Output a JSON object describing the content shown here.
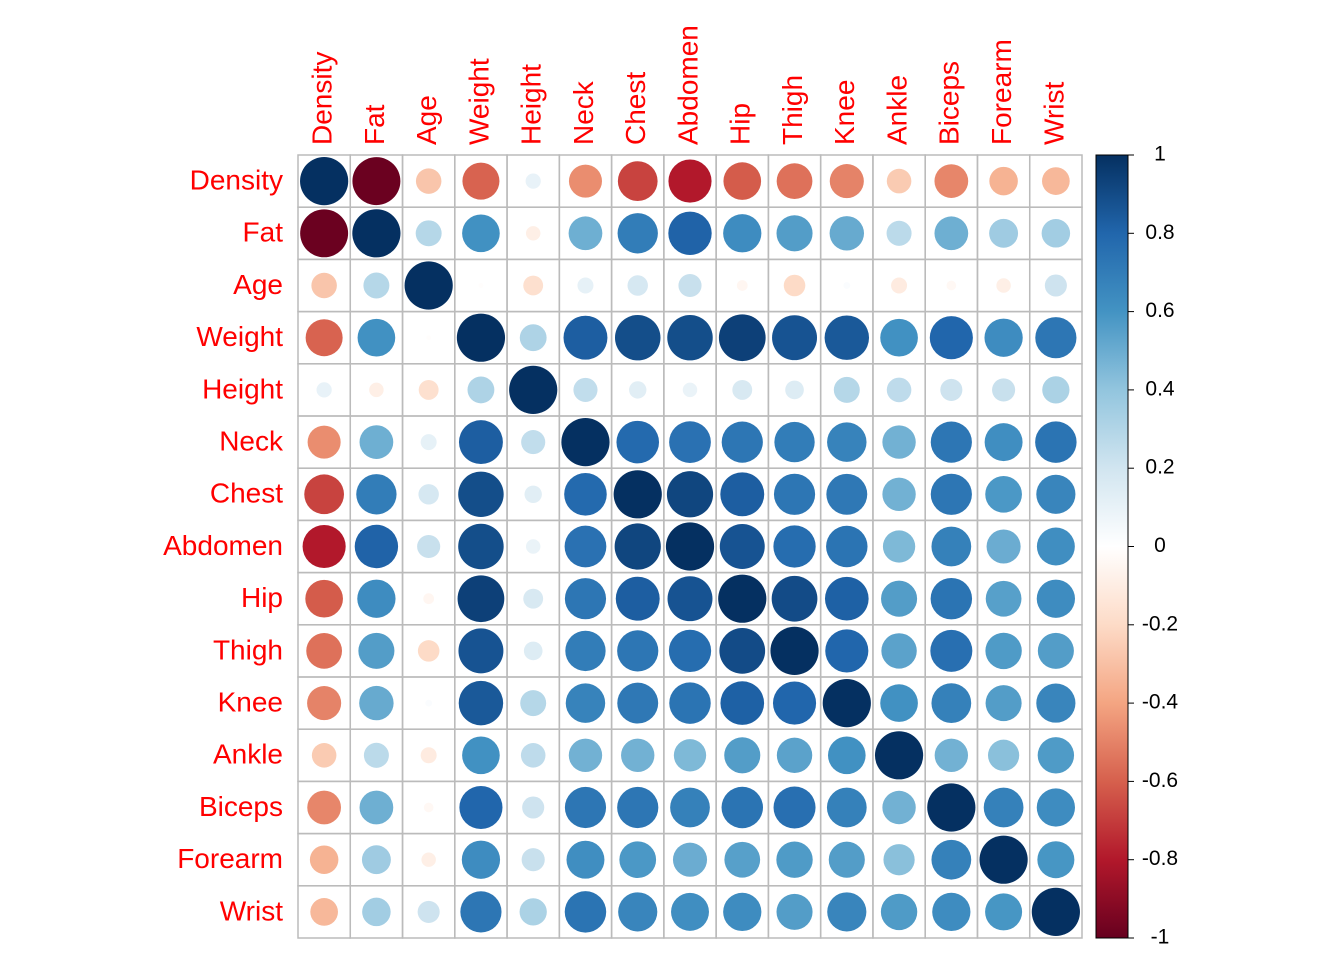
{
  "chart_data": {
    "type": "corrplot",
    "variables": [
      "Density",
      "Fat",
      "Age",
      "Weight",
      "Height",
      "Neck",
      "Chest",
      "Abdomen",
      "Hip",
      "Thigh",
      "Knee",
      "Ankle",
      "Biceps",
      "Forearm",
      "Wrist"
    ],
    "matrix": [
      [
        1,
        -0.99,
        -0.28,
        -0.59,
        0.1,
        -0.47,
        -0.68,
        -0.8,
        -0.61,
        -0.55,
        -0.5,
        -0.26,
        -0.49,
        -0.35,
        -0.33
      ],
      [
        -0.99,
        1,
        0.29,
        0.61,
        -0.09,
        0.49,
        0.7,
        0.81,
        0.63,
        0.56,
        0.51,
        0.27,
        0.49,
        0.36,
        0.35
      ],
      [
        -0.28,
        0.29,
        1,
        -0.01,
        -0.17,
        0.11,
        0.18,
        0.23,
        -0.05,
        -0.2,
        0.02,
        -0.11,
        -0.04,
        -0.09,
        0.21
      ],
      [
        -0.59,
        0.61,
        -0.01,
        1,
        0.31,
        0.83,
        0.89,
        0.89,
        0.94,
        0.87,
        0.85,
        0.61,
        0.8,
        0.63,
        0.73
      ],
      [
        0.1,
        -0.09,
        -0.17,
        0.31,
        1,
        0.25,
        0.13,
        0.09,
        0.17,
        0.15,
        0.29,
        0.26,
        0.21,
        0.23,
        0.32
      ],
      [
        -0.47,
        0.49,
        0.11,
        0.83,
        0.25,
        1,
        0.78,
        0.75,
        0.73,
        0.7,
        0.67,
        0.48,
        0.73,
        0.62,
        0.74
      ],
      [
        -0.68,
        0.7,
        0.18,
        0.89,
        0.13,
        0.78,
        1,
        0.92,
        0.83,
        0.73,
        0.72,
        0.48,
        0.73,
        0.58,
        0.66
      ],
      [
        -0.8,
        0.81,
        0.23,
        0.89,
        0.09,
        0.75,
        0.92,
        1,
        0.87,
        0.77,
        0.74,
        0.45,
        0.68,
        0.5,
        0.62
      ],
      [
        -0.61,
        0.63,
        -0.05,
        0.94,
        0.17,
        0.73,
        0.83,
        0.87,
        1,
        0.9,
        0.82,
        0.56,
        0.74,
        0.55,
        0.63
      ],
      [
        -0.55,
        0.56,
        -0.2,
        0.87,
        0.15,
        0.7,
        0.73,
        0.77,
        0.9,
        1,
        0.8,
        0.54,
        0.76,
        0.57,
        0.56
      ],
      [
        -0.5,
        0.51,
        0.02,
        0.85,
        0.29,
        0.67,
        0.72,
        0.74,
        0.82,
        0.8,
        1,
        0.61,
        0.68,
        0.56,
        0.66
      ],
      [
        -0.26,
        0.27,
        -0.11,
        0.61,
        0.26,
        0.48,
        0.48,
        0.45,
        0.56,
        0.54,
        0.61,
        1,
        0.48,
        0.42,
        0.57
      ],
      [
        -0.49,
        0.49,
        -0.04,
        0.8,
        0.21,
        0.73,
        0.73,
        0.68,
        0.74,
        0.76,
        0.68,
        0.48,
        1,
        0.68,
        0.63
      ],
      [
        -0.35,
        0.36,
        -0.09,
        0.63,
        0.23,
        0.62,
        0.58,
        0.5,
        0.55,
        0.57,
        0.56,
        0.42,
        0.68,
        1,
        0.59
      ],
      [
        -0.33,
        0.35,
        0.21,
        0.73,
        0.32,
        0.74,
        0.66,
        0.62,
        0.63,
        0.56,
        0.66,
        0.57,
        0.63,
        0.59,
        1
      ]
    ],
    "clim": [
      -1,
      1
    ],
    "colorbar_ticks": [
      -1,
      -0.8,
      -0.6,
      -0.4,
      -0.2,
      0,
      0.2,
      0.4,
      0.6,
      0.8,
      1
    ],
    "colors": [
      "#67001F",
      "#B2182B",
      "#D6604D",
      "#F4A582",
      "#FDDBC7",
      "#FFFFFF",
      "#D1E5F0",
      "#92C5DE",
      "#4393C3",
      "#2166AC",
      "#053061"
    ]
  }
}
